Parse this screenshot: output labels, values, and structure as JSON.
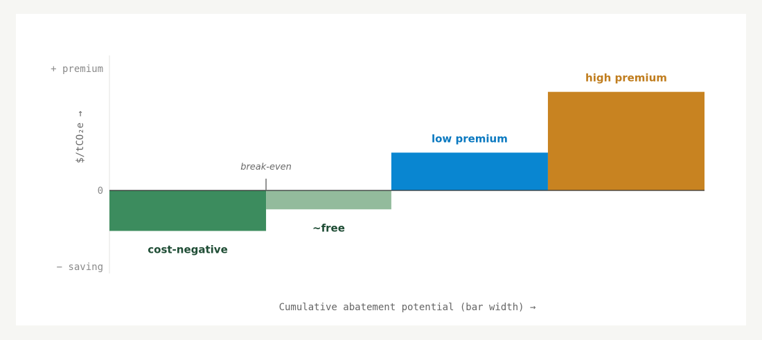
{
  "chart_data": {
    "type": "bar",
    "subtype": "marginal-abatement-cost-curve",
    "title": "",
    "xlabel": "Cumulative abatement potential (bar width) →",
    "ylabel": "$/tCO₂e →",
    "y_ticks": {
      "top": "+ premium",
      "zero": "0",
      "bottom": "− saving"
    },
    "ylim": [
      -6,
      10
    ],
    "grid": false,
    "legend": "none",
    "segments": [
      {
        "label": "cost-negative",
        "width": 1.0,
        "value": -3.0,
        "color": "#3c8c5e",
        "label_color": "#1f4d35",
        "label_position": "below"
      },
      {
        "label": "~free",
        "width": 0.8,
        "value": -1.4,
        "color": "#93bb9c",
        "label_color": "#1f4d35",
        "label_position": "below"
      },
      {
        "label": "low premium",
        "width": 1.0,
        "value": 2.8,
        "color": "#0986d1",
        "label_color": "#0b79c0",
        "label_position": "above"
      },
      {
        "label": "high premium",
        "width": 1.0,
        "value": 7.3,
        "color": "#c88321",
        "label_color": "#c07d1e",
        "label_position": "above"
      }
    ],
    "annotation": {
      "text": "break-even",
      "at_segment_end": 0
    }
  }
}
